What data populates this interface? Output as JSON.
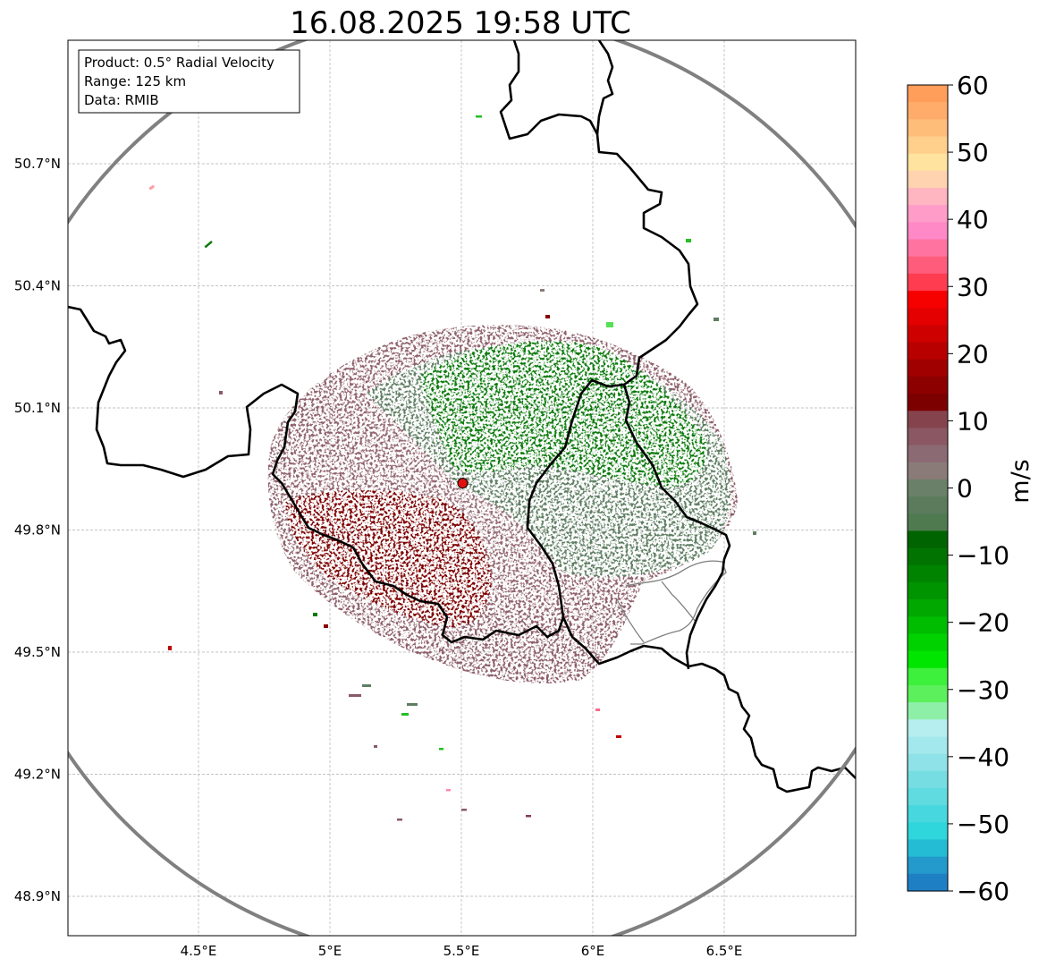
{
  "title": "16.08.2025 19:58 UTC",
  "info_box": {
    "product": "Product: 0.5° Radial Velocity",
    "range": "Range: 125 km",
    "data": "Data: RMIB"
  },
  "axes": {
    "lat_ticks": [
      {
        "value": 50.7,
        "label": "50.7°N"
      },
      {
        "value": 50.4,
        "label": "50.4°N"
      },
      {
        "value": 50.1,
        "label": "50.1°N"
      },
      {
        "value": 49.8,
        "label": "49.8°N"
      },
      {
        "value": 49.5,
        "label": "49.5°N"
      },
      {
        "value": 49.2,
        "label": "49.2°N"
      },
      {
        "value": 48.9,
        "label": "48.9°N"
      }
    ],
    "lon_ticks": [
      {
        "value": 4.5,
        "label": "4.5°E"
      },
      {
        "value": 5.0,
        "label": "5°E"
      },
      {
        "value": 5.5,
        "label": "5.5°E"
      },
      {
        "value": 6.0,
        "label": "6°E"
      },
      {
        "value": 6.5,
        "label": "6.5°E"
      }
    ],
    "lon_range": [
      4.0,
      7.0
    ],
    "lat_range": [
      48.8,
      51.0
    ]
  },
  "radar_site": {
    "lon": 5.505,
    "lat": 49.915
  },
  "colorbar": {
    "label": "m/s",
    "vmin": -60,
    "vmax": 60,
    "ticks": [
      {
        "value": 60,
        "label": "60"
      },
      {
        "value": 50,
        "label": "50"
      },
      {
        "value": 40,
        "label": "40"
      },
      {
        "value": 30,
        "label": "30"
      },
      {
        "value": 20,
        "label": "20"
      },
      {
        "value": 10,
        "label": "10"
      },
      {
        "value": 0,
        "label": "0"
      },
      {
        "value": -10,
        "label": "−10"
      },
      {
        "value": -20,
        "label": "−20"
      },
      {
        "value": -30,
        "label": "−30"
      },
      {
        "value": -40,
        "label": "−40"
      },
      {
        "value": -50,
        "label": "−50"
      },
      {
        "value": -60,
        "label": "−60"
      }
    ],
    "colors_top_to_bottom": [
      "#ff9d5a",
      "#ffac6a",
      "#ffbd7a",
      "#ffcf8c",
      "#ffe39f",
      "#ffd3b0",
      "#ffb6c1",
      "#ff9cc8",
      "#ff88c6",
      "#ff73a0",
      "#ff5c7c",
      "#ff3c50",
      "#f70000",
      "#e40000",
      "#cf0000",
      "#b80000",
      "#a00000",
      "#8c0000",
      "#7d0000",
      "#85444d",
      "#8a5762",
      "#8c6a74",
      "#8a7b78",
      "#6a8068",
      "#5b7b5c",
      "#4f7a50",
      "#006400",
      "#007300",
      "#008400",
      "#009500",
      "#00a800",
      "#00bd00",
      "#00d200",
      "#00e600",
      "#3cf03c",
      "#5cf05c",
      "#8ef0a8",
      "#b6eef0",
      "#a3e8ec",
      "#8ee2e8",
      "#76dee2",
      "#60dbe0",
      "#46d8de",
      "#2fd6db",
      "#24bcd4",
      "#2399cc",
      "#1f7fc4"
    ]
  },
  "map_colors": {
    "border": "#000000",
    "subregion": "#7f7f7f",
    "range_ring": "#808080",
    "grid": "#b0b0b0",
    "site_marker": "#e01010",
    "approach": "#4e7a52",
    "recede": "#8a5a66",
    "strong_approach": "#007800",
    "strong_recede": "#8a0000"
  }
}
